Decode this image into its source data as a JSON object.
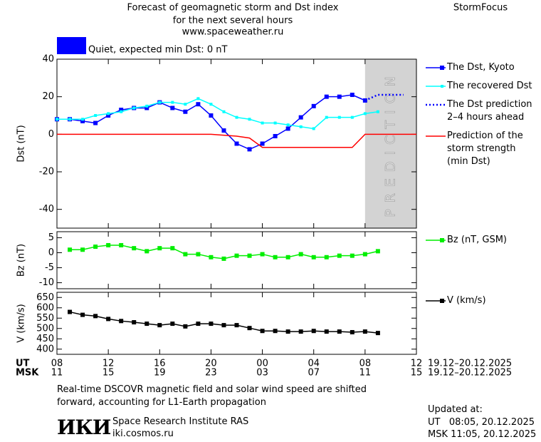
{
  "header": {
    "title": [
      "Forecast of geomagnetic storm and Dst index",
      "for the next several hours",
      "www.spaceweather.ru"
    ],
    "brand": "StormFocus",
    "status": "Quiet, expected min Dst: 0 nT",
    "status_color": "#0000ff"
  },
  "chart_data": [
    {
      "type": "line",
      "y_label": "Dst (nT)",
      "xlim": [
        0,
        28
      ],
      "ylim": [
        -50,
        40
      ],
      "yticks": [
        -40,
        -20,
        0,
        20,
        40
      ],
      "prediction_region": {
        "x": [
          24,
          28
        ],
        "label": "PREDICTION",
        "color": "#d3d3d3"
      },
      "series": [
        {
          "name": "The Dst, Kyoto",
          "color": "#0000ff",
          "marker": "square",
          "line": "solid",
          "x": [
            0,
            1,
            2,
            3,
            4,
            5,
            6,
            7,
            8,
            9,
            10,
            11,
            12,
            13,
            14,
            15,
            16,
            17,
            18,
            19,
            20,
            21,
            22,
            23,
            24
          ],
          "values": [
            8,
            8,
            7,
            6,
            10,
            13,
            14,
            14,
            17,
            14,
            12,
            16,
            10,
            2,
            -5,
            -8,
            -5,
            -1,
            3,
            9,
            15,
            20,
            20,
            21,
            18
          ]
        },
        {
          "name": "The recovered Dst",
          "color": "#00ffff",
          "marker": "small-square",
          "line": "solid",
          "x": [
            0,
            1,
            2,
            3,
            4,
            5,
            6,
            7,
            8,
            9,
            10,
            11,
            12,
            13,
            14,
            15,
            16,
            17,
            18,
            19,
            20,
            21,
            22,
            23,
            24,
            25
          ],
          "values": [
            8,
            8,
            8,
            10,
            11,
            12,
            14,
            15,
            17,
            17,
            16,
            19,
            16,
            12,
            9,
            8,
            6,
            6,
            5,
            4,
            3,
            9,
            9,
            9,
            11,
            12
          ]
        },
        {
          "name": "The Dst prediction\n2–4 hours ahead",
          "color": "#0000ff",
          "marker": "none",
          "line": "dotted",
          "x": [
            24,
            25,
            26,
            27
          ],
          "values": [
            18,
            21,
            21,
            21
          ]
        },
        {
          "name": "Prediction of the\nstorm strength\n(min Dst)",
          "color": "#ff0000",
          "marker": "none",
          "line": "solid",
          "x": [
            0,
            12,
            14,
            15,
            16,
            23,
            24,
            28
          ],
          "values": [
            0,
            0,
            -1,
            -2,
            -7,
            -7,
            0,
            0
          ]
        }
      ]
    },
    {
      "type": "line",
      "y_label": "Bz (nT)",
      "xlim": [
        0,
        28
      ],
      "ylim": [
        -12,
        7
      ],
      "yticks": [
        -10,
        -5,
        0,
        5
      ],
      "series": [
        {
          "name": "Bz (nT, GSM)",
          "color": "#00ee00",
          "marker": "square",
          "line": "solid",
          "x": [
            1,
            2,
            3,
            4,
            5,
            6,
            7,
            8,
            9,
            10,
            11,
            12,
            13,
            14,
            15,
            16,
            17,
            18,
            19,
            20,
            21,
            22,
            23,
            24,
            25
          ],
          "values": [
            1,
            1,
            2,
            2.5,
            2.5,
            1.5,
            0.5,
            1.5,
            1.5,
            -0.5,
            -0.5,
            -1.5,
            -2,
            -1,
            -1,
            -0.5,
            -1.5,
            -1.5,
            -0.5,
            -1.5,
            -1.5,
            -1,
            -1,
            -0.5,
            0.5
          ]
        }
      ]
    },
    {
      "type": "line",
      "y_label": "V (km/s)",
      "xlim": [
        0,
        28
      ],
      "ylim": [
        375,
        675
      ],
      "yticks": [
        400,
        450,
        500,
        550,
        600,
        650
      ],
      "x_label": "UT",
      "xticks": [
        {
          "value": 0,
          "label": "08"
        },
        {
          "value": 4,
          "label": "12"
        },
        {
          "value": 8,
          "label": "16"
        },
        {
          "value": 12,
          "label": "20"
        },
        {
          "value": 16,
          "label": "00"
        },
        {
          "value": 20,
          "label": "04"
        },
        {
          "value": 24,
          "label": "08"
        },
        {
          "value": 28,
          "label": "12"
        }
      ],
      "x_date": "19.12–20.12.2025",
      "x2_label": "MSK",
      "x2_tick_labels": [
        "11",
        "15",
        "19",
        "23",
        "03",
        "07",
        "11",
        "15"
      ],
      "x2_date": "19.12–20.12.2025",
      "series": [
        {
          "name": "V (km/s)",
          "color": "#000000",
          "marker": "square",
          "line": "solid",
          "x": [
            1,
            2,
            3,
            4,
            5,
            6,
            7,
            8,
            9,
            10,
            11,
            12,
            13,
            14,
            15,
            16,
            17,
            18,
            19,
            20,
            21,
            22,
            23,
            24,
            25
          ],
          "values": [
            580,
            566,
            560,
            546,
            536,
            530,
            523,
            516,
            523,
            510,
            523,
            523,
            516,
            516,
            502,
            488,
            488,
            485,
            485,
            488,
            485,
            485,
            482,
            485,
            478
          ]
        }
      ]
    }
  ],
  "footer": {
    "note": "Real-time DSCOVR magnetic field and solar wind speed are shifted\nforward, accounting for L1-Earth propagation",
    "logo": "ИКИ",
    "institute": "Space Research Institute RAS",
    "url": "iki.cosmos.ru",
    "updated": [
      "Updated at:",
      "UT   08:05, 20.12.2025",
      "MSK 11:05, 20.12.2025"
    ]
  }
}
